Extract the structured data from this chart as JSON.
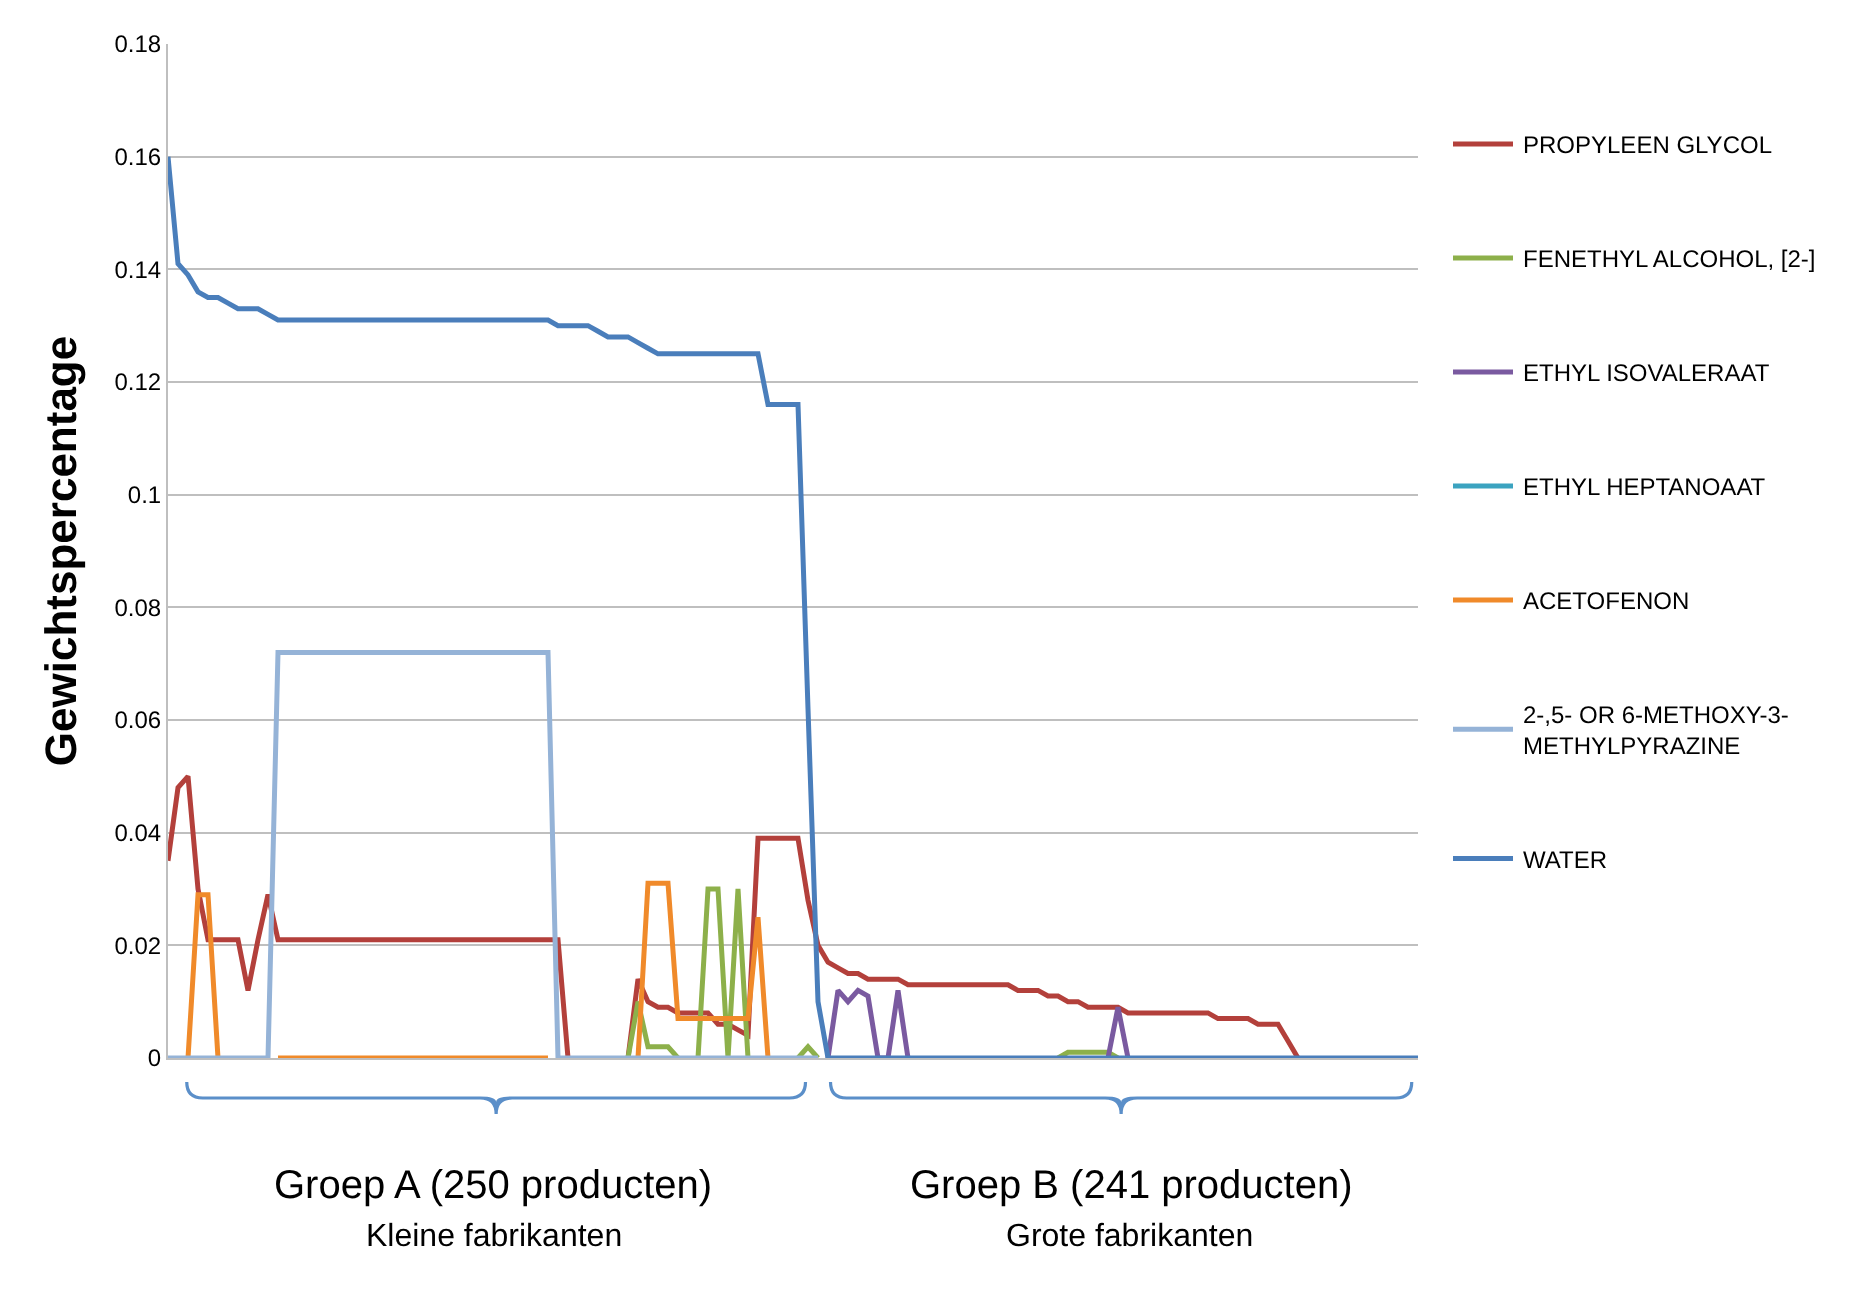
{
  "chart_data": {
    "type": "line",
    "ylabel": "Gewichtspercentage",
    "categories": [
      null,
      null,
      null,
      null,
      null,
      null,
      null,
      null,
      null,
      null,
      null,
      null,
      null,
      null,
      null,
      null,
      null,
      null,
      null,
      null,
      null,
      null,
      null,
      null,
      null,
      null,
      null,
      null,
      null,
      null,
      null,
      null,
      null,
      null,
      null,
      null,
      null,
      null,
      null,
      null,
      null,
      null,
      null,
      null,
      null,
      null,
      null,
      null,
      null,
      null,
      null,
      null,
      null,
      null,
      null,
      null,
      null,
      null,
      null,
      null,
      null,
      null,
      null,
      null,
      null,
      null,
      null,
      null,
      null,
      null,
      null,
      null,
      null,
      null,
      null,
      null,
      null,
      null,
      null,
      null,
      null,
      null,
      null,
      null,
      null,
      null,
      null,
      null,
      null,
      null,
      null,
      null,
      null,
      null,
      null,
      null,
      null,
      null,
      null,
      null,
      null,
      null,
      null,
      null,
      null,
      null,
      null,
      null,
      null,
      null,
      null,
      null,
      null,
      null,
      null,
      null,
      null,
      null,
      null,
      null,
      null,
      null,
      null,
      null,
      null,
      null
    ],
    "ylim": [
      0,
      0.18
    ],
    "yticks": [
      0,
      0.02,
      0.04,
      0.06,
      0.08,
      0.1,
      0.12,
      0.14,
      0.16,
      0.18
    ],
    "grid": "y",
    "legend": "right",
    "marker": "none",
    "line_style": "solid",
    "series": [
      {
        "name": "PROPYLEEN GLYCOL",
        "color": "#b3403b",
        "values": [
          0.035,
          0.048,
          0.05,
          0.03,
          0.021,
          0.021,
          0.021,
          0.021,
          0.012,
          0.021,
          0.029,
          0.021,
          0.021,
          0.021,
          0.021,
          0.021,
          0.021,
          0.021,
          0.021,
          0.021,
          0.021,
          0.021,
          0.021,
          0.021,
          0.021,
          0.021,
          0.021,
          0.021,
          0.021,
          0.021,
          0.021,
          0.021,
          0.021,
          0.021,
          0.021,
          0.021,
          0.021,
          0.021,
          0.021,
          0.021,
          0,
          null,
          null,
          null,
          null,
          null,
          0,
          0.014,
          0.01,
          0.009,
          0.009,
          0.008,
          0.008,
          0.008,
          0.008,
          0.006,
          0.006,
          0.005,
          0.004,
          0.039,
          0.039,
          0.039,
          0.039,
          0.039,
          0.028,
          0.02,
          0.017,
          0.016,
          0.015,
          0.015,
          0.014,
          0.014,
          0.014,
          0.014,
          0.013,
          0.013,
          0.013,
          0.013,
          0.013,
          0.013,
          0.013,
          0.013,
          0.013,
          0.013,
          0.013,
          0.012,
          0.012,
          0.012,
          0.011,
          0.011,
          0.01,
          0.01,
          0.009,
          0.009,
          0.009,
          0.009,
          0.008,
          0.008,
          0.008,
          0.008,
          0.008,
          0.008,
          0.008,
          0.008,
          0.008,
          0.007,
          0.007,
          0.007,
          0.007,
          0.006,
          0.006,
          0.006,
          0.003,
          0,
          null,
          null,
          null,
          null,
          null,
          null,
          null,
          null,
          null,
          null,
          null,
          null
        ]
      },
      {
        "name": "FENETHYL ALCOHOL, [2-]",
        "color": "#8db04a",
        "values": [
          null,
          null,
          null,
          null,
          null,
          null,
          null,
          null,
          null,
          null,
          null,
          null,
          null,
          null,
          null,
          null,
          null,
          null,
          null,
          null,
          null,
          null,
          null,
          null,
          null,
          null,
          null,
          null,
          null,
          null,
          null,
          null,
          null,
          null,
          null,
          null,
          null,
          null,
          null,
          null,
          null,
          null,
          null,
          null,
          null,
          null,
          0,
          0.01,
          0.002,
          0.002,
          0.002,
          0,
          null,
          0,
          0.03,
          0.03,
          0,
          0.03,
          0,
          null,
          null,
          null,
          null,
          0,
          0.002,
          0,
          null,
          null,
          null,
          null,
          null,
          null,
          null,
          null,
          null,
          null,
          null,
          null,
          null,
          null,
          null,
          null,
          null,
          null,
          null,
          null,
          null,
          null,
          null,
          0,
          0.001,
          0.001,
          0.001,
          0.001,
          0.001,
          0,
          null,
          null,
          null,
          null,
          null,
          null,
          null,
          null,
          null,
          null,
          null,
          null,
          null,
          null,
          null,
          null,
          null,
          null,
          null,
          null,
          null,
          null,
          null,
          null,
          null,
          null,
          null,
          null,
          null,
          null
        ]
      },
      {
        "name": "ETHYL ISOVALERAAT",
        "color": "#7a5aa0",
        "values": [
          null,
          null,
          null,
          null,
          null,
          null,
          null,
          null,
          null,
          null,
          null,
          null,
          null,
          null,
          null,
          null,
          null,
          null,
          null,
          null,
          null,
          null,
          null,
          null,
          null,
          null,
          null,
          null,
          null,
          null,
          null,
          null,
          null,
          null,
          null,
          null,
          null,
          null,
          null,
          null,
          null,
          null,
          null,
          null,
          null,
          null,
          null,
          null,
          null,
          null,
          null,
          null,
          null,
          null,
          null,
          null,
          null,
          null,
          null,
          null,
          null,
          null,
          null,
          null,
          null,
          null,
          0,
          0.012,
          0.01,
          0.012,
          0.011,
          0,
          0,
          0.012,
          0,
          null,
          null,
          null,
          null,
          null,
          null,
          null,
          null,
          null,
          null,
          null,
          null,
          null,
          null,
          null,
          null,
          null,
          null,
          null,
          0,
          0.009,
          0,
          null,
          null,
          null,
          null,
          null,
          null,
          null,
          null,
          null,
          null,
          null,
          null,
          null,
          null,
          null,
          null,
          null,
          null,
          null,
          null,
          null,
          null,
          null,
          null,
          null,
          null,
          null,
          null,
          null
        ]
      },
      {
        "name": "ETHYL HEPTANOAAT",
        "color": "#3ba3c0",
        "values": [
          null,
          null,
          null,
          null,
          null,
          null,
          null,
          null,
          null,
          null,
          null,
          null,
          null,
          null,
          null,
          null,
          null,
          null,
          null,
          null,
          null,
          null,
          null,
          null,
          null,
          null,
          null,
          null,
          null,
          null,
          null,
          null,
          null,
          null,
          null,
          null,
          null,
          null,
          null,
          null,
          null,
          null,
          null,
          null,
          null,
          null,
          null,
          null,
          null,
          null,
          null,
          null,
          null,
          null,
          null,
          null,
          null,
          null,
          null,
          null,
          null,
          null,
          null,
          null,
          null,
          null,
          null,
          null,
          null,
          null,
          null,
          null,
          null,
          null,
          null,
          null,
          null,
          null,
          null,
          null,
          null,
          null,
          null,
          null,
          null,
          null,
          null,
          null,
          null,
          null,
          null,
          null,
          null,
          null,
          null,
          null,
          null,
          null,
          null,
          null,
          null,
          null,
          null,
          null,
          null,
          null,
          null,
          null,
          null,
          null,
          null,
          null,
          null,
          null,
          null,
          null,
          null,
          null,
          null,
          null,
          null,
          null,
          null,
          null,
          null,
          null
        ]
      },
      {
        "name": "ACETOFENON",
        "color": "#f08a2a",
        "values": [
          null,
          null,
          0,
          0.029,
          0.029,
          0,
          null,
          null,
          null,
          null,
          null,
          0,
          0,
          0,
          0,
          0,
          0,
          0,
          0,
          0,
          0,
          0,
          0,
          0,
          0,
          0,
          0,
          0,
          0,
          0,
          0,
          0,
          0,
          0,
          0,
          0,
          0,
          0,
          0,
          null,
          null,
          null,
          null,
          null,
          null,
          null,
          null,
          0,
          0.031,
          0.031,
          0.031,
          0.007,
          0.007,
          0.007,
          0.007,
          0.007,
          0.007,
          0.007,
          0.007,
          0.025,
          0,
          null,
          null,
          null,
          null,
          null,
          null,
          null,
          null,
          null,
          null,
          null,
          null,
          null,
          null,
          null,
          null,
          null,
          null,
          null,
          null,
          null,
          null,
          null,
          null,
          null,
          null,
          null,
          null,
          null,
          null,
          null,
          null,
          null,
          null,
          null,
          null,
          null,
          null,
          null,
          null,
          null,
          null,
          null,
          null,
          null,
          null,
          null,
          null,
          null,
          null,
          null,
          null,
          null,
          null,
          null,
          null,
          null,
          null,
          null,
          null,
          null,
          null,
          null,
          null,
          null
        ]
      },
      {
        "name": "2-,5- OR 6-METHOXY-3-METHYLPYRAZINE",
        "color": "#95b3d7",
        "values": [
          0,
          0,
          0,
          0,
          0,
          0,
          0,
          0,
          0,
          0,
          0,
          0.072,
          0.072,
          0.072,
          0.072,
          0.072,
          0.072,
          0.072,
          0.072,
          0.072,
          0.072,
          0.072,
          0.072,
          0.072,
          0.072,
          0.072,
          0.072,
          0.072,
          0.072,
          0.072,
          0.072,
          0.072,
          0.072,
          0.072,
          0.072,
          0.072,
          0.072,
          0.072,
          0.072,
          0,
          0,
          0,
          0,
          0,
          0,
          0,
          0,
          0,
          0,
          0,
          0,
          0,
          0,
          0,
          0,
          0,
          0,
          0,
          0,
          0,
          0,
          0,
          0,
          0,
          0,
          0,
          null,
          null,
          null,
          null,
          null,
          null,
          null,
          null,
          null,
          null,
          null,
          null,
          null,
          null,
          null,
          null,
          null,
          null,
          null,
          null,
          null,
          null,
          null,
          null,
          null,
          null,
          null,
          null,
          null,
          null,
          null,
          null,
          null,
          null,
          null,
          null,
          null,
          null,
          null,
          null,
          null,
          null,
          null,
          null,
          null,
          null,
          null,
          null,
          null,
          null,
          null,
          null,
          null,
          null,
          null,
          null,
          null,
          null,
          null,
          null
        ]
      },
      {
        "name": "WATER",
        "color": "#4a7ebb",
        "values": [
          0.16,
          0.141,
          0.139,
          0.136,
          0.135,
          0.135,
          0.134,
          0.133,
          0.133,
          0.133,
          0.132,
          0.131,
          0.131,
          0.131,
          0.131,
          0.131,
          0.131,
          0.131,
          0.131,
          0.131,
          0.131,
          0.131,
          0.131,
          0.131,
          0.131,
          0.131,
          0.131,
          0.131,
          0.131,
          0.131,
          0.131,
          0.131,
          0.131,
          0.131,
          0.131,
          0.131,
          0.131,
          0.131,
          0.131,
          0.13,
          0.13,
          0.13,
          0.13,
          0.129,
          0.128,
          0.128,
          0.128,
          0.127,
          0.126,
          0.125,
          0.125,
          0.125,
          0.125,
          0.125,
          0.125,
          0.125,
          0.125,
          0.125,
          0.125,
          0.125,
          0.116,
          0.116,
          0.116,
          0.116,
          0.062,
          0.01,
          0,
          0,
          0,
          0,
          0,
          0,
          0,
          0,
          0,
          0,
          0,
          0,
          0,
          0,
          0,
          0,
          0,
          0,
          0,
          0,
          0,
          0,
          0,
          0,
          0,
          0,
          0,
          0,
          0,
          0,
          0,
          0,
          0,
          0,
          0,
          0,
          0,
          0,
          0,
          0,
          0,
          0,
          0,
          0,
          0,
          0,
          0,
          0,
          0,
          0,
          0,
          0,
          0,
          0,
          0,
          0,
          0,
          0,
          0,
          0
        ]
      }
    ],
    "annotations": [
      "Groep A (250 producten)",
      "Kleine fabrikanten",
      "Groep B (241 producten)",
      "Grote fabrikanten"
    ]
  }
}
